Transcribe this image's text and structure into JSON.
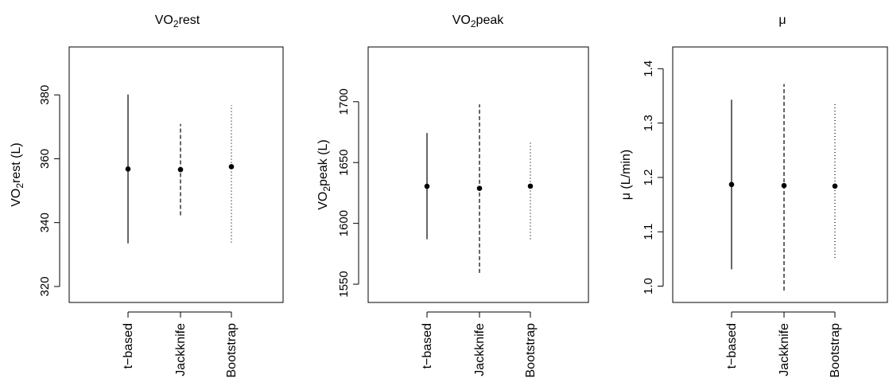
{
  "chart_data": [
    {
      "type": "errorbar",
      "title": "VO2rest",
      "title_parts": {
        "base": "VO",
        "sub": "2",
        "rest": "rest"
      },
      "ylabel_parts": {
        "base": "VO",
        "sub": "2",
        "rest": "rest (L)"
      },
      "ylim": [
        315,
        395
      ],
      "yticks": [
        320,
        340,
        360,
        380
      ],
      "categories": [
        "t−based",
        "Jackknife",
        "Bootstrap"
      ],
      "series": [
        {
          "category": "t−based",
          "estimate": 356.8,
          "lower": 333.5,
          "upper": 380.1,
          "line_style": "solid"
        },
        {
          "category": "Jackknife",
          "estimate": 356.6,
          "lower": 342.3,
          "upper": 370.9,
          "line_style": "dashed"
        },
        {
          "category": "Bootstrap",
          "estimate": 357.5,
          "lower": 333.8,
          "upper": 376.8,
          "line_style": "dotted"
        }
      ],
      "grid": false,
      "legend": "none"
    },
    {
      "type": "errorbar",
      "title": "VO2peak",
      "title_parts": {
        "base": "VO",
        "sub": "2",
        "rest": "peak"
      },
      "ylabel_parts": {
        "base": "VO",
        "sub": "2",
        "rest": "peak (L)"
      },
      "ylim": [
        1535,
        1745
      ],
      "yticks": [
        1550,
        1600,
        1650,
        1700
      ],
      "categories": [
        "t−based",
        "Jackknife",
        "Bootstrap"
      ],
      "series": [
        {
          "category": "t−based",
          "estimate": 1630.5,
          "lower": 1586.9,
          "upper": 1674.3,
          "line_style": "solid"
        },
        {
          "category": "Jackknife",
          "estimate": 1628.8,
          "lower": 1559.3,
          "upper": 1697.8,
          "line_style": "dashed"
        },
        {
          "category": "Bootstrap",
          "estimate": 1630.6,
          "lower": 1587.0,
          "upper": 1667.9,
          "line_style": "dotted"
        }
      ],
      "grid": false,
      "legend": "none"
    },
    {
      "type": "errorbar",
      "title": "μ",
      "title_parts": {
        "base": "μ",
        "sub": "",
        "rest": ""
      },
      "ylabel_parts": {
        "base": "μ (L/min)",
        "sub": "",
        "rest": ""
      },
      "ylim": [
        0.97,
        1.44
      ],
      "yticks": [
        "1.0",
        "1.1",
        "1.2",
        "1.3",
        "1.4"
      ],
      "categories": [
        "t−based",
        "Jackknife",
        "Bootstrap"
      ],
      "series": [
        {
          "category": "t−based",
          "estimate": 1.187,
          "lower": 1.031,
          "upper": 1.343,
          "line_style": "solid"
        },
        {
          "category": "Jackknife",
          "estimate": 1.185,
          "lower": 0.992,
          "upper": 1.372,
          "line_style": "dashed"
        },
        {
          "category": "Bootstrap",
          "estimate": 1.184,
          "lower": 1.052,
          "upper": 1.338,
          "line_style": "dotted"
        }
      ],
      "grid": false,
      "legend": "none"
    }
  ]
}
